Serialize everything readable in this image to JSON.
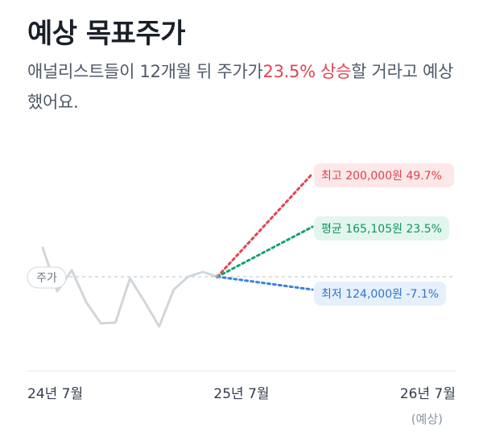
{
  "header": {
    "title": "예상 목표주가",
    "desc_pre": "애널리스트들이 12개월 뒤 주가가",
    "desc_highlight": "23.5% 상승",
    "desc_post": "할 거라고 예상했어요."
  },
  "colors": {
    "up": "#e1454f",
    "avg": "#12a36b",
    "down": "#3a82d8",
    "price": "#d1d6db"
  },
  "chart_data": {
    "type": "line",
    "x_labels": [
      "24년 7월",
      "25년 7월",
      "26년 7월"
    ],
    "x_sublabel": "(예상)",
    "current_label": "주가",
    "price_series": [
      118,
      64,
      90,
      50,
      24,
      25,
      80,
      51,
      20,
      66,
      82,
      88,
      82
    ],
    "current_price": 82,
    "targets": [
      {
        "key": "high",
        "label": "최고",
        "price": "200,000원",
        "pct": "49.7%",
        "value": 210
      },
      {
        "key": "avg",
        "label": "평균",
        "price": "165,105원",
        "pct": "23.5%",
        "value": 144
      },
      {
        "key": "low",
        "label": "최저",
        "price": "124,000원",
        "pct": "-7.1%",
        "value": 66
      }
    ]
  }
}
